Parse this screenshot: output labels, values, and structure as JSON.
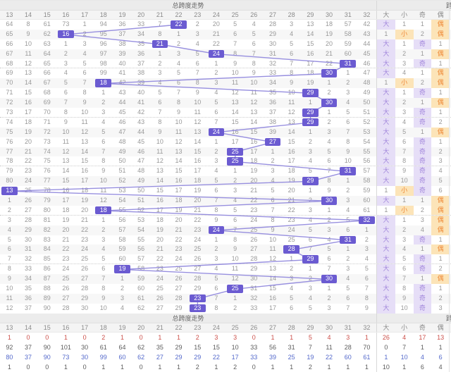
{
  "top_title": "总跨度走势",
  "bottom_title": "总跨度走势",
  "next_section_partial": "跨",
  "columns": [
    "13",
    "14",
    "15",
    "16",
    "17",
    "18",
    "19",
    "20",
    "21",
    "22",
    "23",
    "24",
    "25",
    "26",
    "27",
    "28",
    "29",
    "30",
    "31",
    "32"
  ],
  "pattern_headers": [
    "大",
    "小",
    "奇",
    "偶"
  ],
  "colors": {
    "highlight": "#6b5bd1",
    "trend_line": "#8c83db",
    "big_odd_bg": "#e6def7",
    "big_odd_text": "#a186db",
    "small_even_bg": "#fce4b8",
    "small_even_text": "#ee8937",
    "stat_red": "#cc4f49",
    "stat_blue": "#5469cb",
    "stat_dark": "#5c5c5c"
  },
  "rows": [
    {
      "values": [
        64,
        8,
        61,
        73,
        1,
        94,
        36,
        33,
        7,
        22,
        2,
        20,
        5,
        4,
        28,
        3,
        13,
        18,
        57,
        42
      ],
      "win": 22,
      "pattern": [
        "大",
        "1",
        "1",
        "偶"
      ]
    },
    {
      "values": [
        65,
        9,
        62,
        16,
        2,
        95,
        37,
        34,
        8,
        1,
        3,
        21,
        6,
        5,
        29,
        4,
        14,
        19,
        58,
        43
      ],
      "win": 16,
      "pattern": [
        "1",
        "小",
        "2",
        "偶"
      ]
    },
    {
      "values": [
        66,
        10,
        63,
        1,
        3,
        96,
        38,
        35,
        21,
        2,
        4,
        22,
        7,
        6,
        30,
        5,
        15,
        20,
        59,
        44
      ],
      "win": 21,
      "pattern": [
        "大",
        "1",
        "奇",
        "1"
      ]
    },
    {
      "values": [
        67,
        11,
        64,
        2,
        4,
        97,
        39,
        36,
        1,
        3,
        5,
        24,
        8,
        7,
        31,
        6,
        16,
        21,
        60,
        45
      ],
      "win": 24,
      "pattern": [
        "大",
        "2",
        "1",
        "偶"
      ]
    },
    {
      "values": [
        68,
        12,
        65,
        3,
        5,
        98,
        40,
        37,
        2,
        4,
        6,
        1,
        9,
        8,
        32,
        7,
        17,
        22,
        31,
        46
      ],
      "win": 31,
      "pattern": [
        "大",
        "3",
        "奇",
        "1"
      ]
    },
    {
      "values": [
        69,
        13,
        66,
        4,
        6,
        99,
        41,
        38,
        3,
        5,
        7,
        2,
        10,
        9,
        33,
        8,
        18,
        30,
        1,
        47
      ],
      "win": 30,
      "pattern": [
        "大",
        "4",
        "1",
        "偶"
      ]
    },
    {
      "values": [
        70,
        14,
        67,
        5,
        7,
        18,
        42,
        39,
        4,
        6,
        8,
        3,
        11,
        10,
        34,
        9,
        19,
        1,
        2,
        48
      ],
      "win": 18,
      "pattern": [
        "1",
        "小",
        "2",
        "偶"
      ]
    },
    {
      "values": [
        71,
        15,
        68,
        6,
        8,
        1,
        43,
        40,
        5,
        7,
        9,
        4,
        12,
        11,
        35,
        10,
        29,
        2,
        3,
        49
      ],
      "win": 29,
      "pattern": [
        "大",
        "1",
        "奇",
        "1"
      ]
    },
    {
      "values": [
        72,
        16,
        69,
        7,
        9,
        2,
        44,
        41,
        6,
        8,
        10,
        5,
        13,
        12,
        36,
        11,
        1,
        30,
        4,
        50
      ],
      "win": 30,
      "pattern": [
        "大",
        "2",
        "1",
        "偶"
      ]
    },
    {
      "values": [
        73,
        17,
        70,
        8,
        10,
        3,
        45,
        42,
        7,
        9,
        11,
        6,
        14,
        13,
        37,
        12,
        29,
        1,
        5,
        51
      ],
      "win": 29,
      "pattern": [
        "大",
        "3",
        "奇",
        "1"
      ]
    },
    {
      "values": [
        74,
        18,
        71,
        9,
        11,
        4,
        46,
        43,
        8,
        10,
        12,
        7,
        15,
        14,
        38,
        13,
        29,
        2,
        6,
        52
      ],
      "win": 29,
      "pattern": [
        "大",
        "4",
        "奇",
        "2"
      ]
    },
    {
      "values": [
        75,
        19,
        72,
        10,
        12,
        5,
        47,
        44,
        9,
        11,
        13,
        24,
        16,
        15,
        39,
        14,
        1,
        3,
        7,
        53
      ],
      "win": 24,
      "pattern": [
        "大",
        "5",
        "1",
        "偶"
      ]
    },
    {
      "values": [
        76,
        20,
        73,
        11,
        13,
        6,
        48,
        45,
        10,
        12,
        14,
        1,
        17,
        16,
        27,
        15,
        2,
        4,
        8,
        54
      ],
      "win": 27,
      "pattern": [
        "大",
        "6",
        "奇",
        "1"
      ]
    },
    {
      "values": [
        77,
        21,
        74,
        12,
        14,
        7,
        49,
        46,
        11,
        13,
        15,
        2,
        25,
        17,
        1,
        16,
        3,
        5,
        9,
        55
      ],
      "win": 25,
      "pattern": [
        "大",
        "7",
        "奇",
        "2"
      ]
    },
    {
      "values": [
        78,
        22,
        75,
        13,
        15,
        8,
        50,
        47,
        12,
        14,
        16,
        3,
        25,
        18,
        2,
        17,
        4,
        6,
        10,
        56
      ],
      "win": 25,
      "pattern": [
        "大",
        "8",
        "奇",
        "3"
      ]
    },
    {
      "values": [
        79,
        23,
        76,
        14,
        16,
        9,
        51,
        48,
        13,
        15,
        17,
        4,
        1,
        19,
        3,
        18,
        5,
        7,
        31,
        57
      ],
      "win": 31,
      "pattern": [
        "大",
        "9",
        "奇",
        "4"
      ]
    },
    {
      "values": [
        80,
        24,
        77,
        15,
        17,
        10,
        52,
        49,
        14,
        16,
        18,
        5,
        2,
        20,
        4,
        19,
        29,
        8,
        1,
        58
      ],
      "win": 29,
      "pattern": [
        "大",
        "10",
        "奇",
        "5"
      ]
    },
    {
      "values": [
        13,
        25,
        78,
        16,
        18,
        11,
        53,
        50,
        15,
        17,
        19,
        6,
        3,
        21,
        5,
        20,
        1,
        9,
        2,
        59
      ],
      "win": 13,
      "pattern": [
        "1",
        "小",
        "奇",
        "6"
      ]
    },
    {
      "values": [
        1,
        26,
        79,
        17,
        19,
        12,
        54,
        51,
        16,
        18,
        20,
        7,
        4,
        22,
        6,
        21,
        2,
        30,
        3,
        60
      ],
      "win": 30,
      "pattern": [
        "大",
        "1",
        "1",
        "偶"
      ]
    },
    {
      "values": [
        2,
        27,
        80,
        18,
        20,
        18,
        55,
        52,
        17,
        19,
        21,
        8,
        5,
        23,
        7,
        22,
        3,
        1,
        4,
        61
      ],
      "win": 18,
      "pattern": [
        "1",
        "小",
        "2",
        "偶"
      ]
    },
    {
      "values": [
        3,
        28,
        81,
        19,
        21,
        1,
        56,
        53,
        18,
        20,
        22,
        9,
        6,
        24,
        8,
        23,
        4,
        2,
        5,
        32
      ],
      "win": 32,
      "pattern": [
        "大",
        "1",
        "3",
        "偶"
      ]
    },
    {
      "values": [
        4,
        29,
        82,
        20,
        22,
        2,
        57,
        54,
        19,
        21,
        23,
        24,
        7,
        25,
        9,
        24,
        5,
        3,
        6,
        1
      ],
      "win": 24,
      "pattern": [
        "大",
        "2",
        "4",
        "偶"
      ]
    },
    {
      "values": [
        5,
        30,
        83,
        21,
        23,
        3,
        58,
        55,
        20,
        22,
        24,
        1,
        8,
        26,
        10,
        25,
        6,
        4,
        31,
        2
      ],
      "win": 31,
      "pattern": [
        "大",
        "3",
        "奇",
        "1"
      ]
    },
    {
      "values": [
        6,
        31,
        84,
        22,
        24,
        4,
        59,
        56,
        21,
        23,
        25,
        2,
        9,
        27,
        11,
        28,
        7,
        5,
        1,
        3
      ],
      "win": 28,
      "pattern": [
        "大",
        "4",
        "1",
        "偶"
      ]
    },
    {
      "values": [
        7,
        32,
        85,
        23,
        25,
        5,
        60,
        57,
        22,
        24,
        26,
        3,
        10,
        28,
        12,
        1,
        29,
        6,
        2,
        4
      ],
      "win": 29,
      "pattern": [
        "大",
        "5",
        "奇",
        "1"
      ]
    },
    {
      "values": [
        8,
        33,
        86,
        24,
        26,
        6,
        19,
        58,
        23,
        25,
        27,
        4,
        11,
        29,
        13,
        2,
        1,
        7,
        3,
        5
      ],
      "win": 19,
      "pattern": [
        "大",
        "6",
        "奇",
        "2"
      ]
    },
    {
      "values": [
        9,
        34,
        87,
        25,
        27,
        7,
        1,
        59,
        24,
        26,
        28,
        5,
        12,
        30,
        14,
        3,
        2,
        30,
        4,
        6
      ],
      "win": 30,
      "pattern": [
        "大",
        "7",
        "1",
        "偶"
      ]
    },
    {
      "values": [
        10,
        35,
        88,
        26,
        28,
        8,
        2,
        60,
        25,
        27,
        29,
        6,
        25,
        31,
        15,
        4,
        3,
        1,
        5,
        7
      ],
      "win": 25,
      "pattern": [
        "大",
        "8",
        "奇",
        "1"
      ]
    },
    {
      "values": [
        11,
        36,
        89,
        27,
        29,
        9,
        3,
        61,
        26,
        28,
        23,
        7,
        1,
        32,
        16,
        5,
        4,
        2,
        6,
        8
      ],
      "win": 23,
      "pattern": [
        "大",
        "9",
        "奇",
        "2"
      ]
    },
    {
      "values": [
        12,
        37,
        90,
        28,
        30,
        10,
        4,
        62,
        27,
        29,
        23,
        8,
        2,
        33,
        17,
        6,
        5,
        3,
        7,
        9
      ],
      "win": 23,
      "pattern": [
        "大",
        "10",
        "奇",
        "3"
      ]
    }
  ],
  "stats": [
    {
      "color": "red",
      "values": [
        1,
        0,
        0,
        1,
        0,
        2,
        1,
        0,
        1,
        1,
        2,
        3,
        3,
        0,
        1,
        1,
        5,
        4,
        3,
        1,
        26,
        4,
        17,
        13
      ]
    },
    {
      "color": "dark",
      "values": [
        92,
        37,
        90,
        101,
        30,
        61,
        64,
        62,
        35,
        29,
        15,
        15,
        10,
        33,
        56,
        31,
        7,
        11,
        28,
        70,
        0,
        7,
        1,
        1
      ]
    },
    {
      "color": "blue",
      "values": [
        80,
        37,
        90,
        73,
        30,
        99,
        60,
        62,
        27,
        29,
        29,
        22,
        17,
        33,
        39,
        25,
        19,
        22,
        60,
        61,
        1,
        10,
        4,
        6
      ]
    },
    {
      "color": "dark",
      "values": [
        1,
        0,
        0,
        1,
        0,
        1,
        1,
        0,
        1,
        1,
        2,
        1,
        2,
        0,
        1,
        1,
        2,
        1,
        1,
        1,
        10,
        1,
        6,
        4
      ]
    }
  ],
  "chart_data": {
    "type": "line",
    "title": "总跨度走势",
    "xlabel": "",
    "ylabel": "总跨度",
    "ylim": [
      13,
      32
    ],
    "x": [
      1,
      2,
      3,
      4,
      5,
      6,
      7,
      8,
      9,
      10,
      11,
      12,
      13,
      14,
      15,
      16,
      17,
      18,
      19,
      20,
      21,
      22,
      23,
      24,
      25,
      26,
      27,
      28,
      29,
      30
    ],
    "series": [
      {
        "name": "总跨度",
        "values": [
          22,
          16,
          21,
          24,
          31,
          30,
          18,
          29,
          30,
          29,
          29,
          24,
          27,
          25,
          25,
          31,
          29,
          13,
          30,
          18,
          32,
          24,
          31,
          28,
          29,
          19,
          30,
          25,
          23,
          23
        ]
      },
      {
        "name": "大小",
        "values": [
          "大",
          "小",
          "大",
          "大",
          "大",
          "大",
          "小",
          "大",
          "大",
          "大",
          "大",
          "大",
          "大",
          "大",
          "大",
          "大",
          "大",
          "小",
          "大",
          "小",
          "大",
          "大",
          "大",
          "大",
          "大",
          "大",
          "大",
          "大",
          "大",
          "大"
        ]
      },
      {
        "name": "奇偶",
        "values": [
          "偶",
          "偶",
          "奇",
          "偶",
          "奇",
          "偶",
          "偶",
          "奇",
          "偶",
          "奇",
          "奇",
          "偶",
          "奇",
          "奇",
          "奇",
          "奇",
          "奇",
          "奇",
          "偶",
          "偶",
          "偶",
          "偶",
          "奇",
          "偶",
          "奇",
          "奇",
          "偶",
          "奇",
          "奇",
          "奇"
        ]
      }
    ],
    "stats_columns": [
      "13",
      "14",
      "15",
      "16",
      "17",
      "18",
      "19",
      "20",
      "21",
      "22",
      "23",
      "24",
      "25",
      "26",
      "27",
      "28",
      "29",
      "30",
      "31",
      "32",
      "大",
      "小",
      "奇",
      "偶"
    ],
    "stats_rows": [
      [
        1,
        0,
        0,
        1,
        0,
        2,
        1,
        0,
        1,
        1,
        2,
        3,
        3,
        0,
        1,
        1,
        5,
        4,
        3,
        1,
        26,
        4,
        17,
        13
      ],
      [
        92,
        37,
        90,
        101,
        30,
        61,
        64,
        62,
        35,
        29,
        15,
        15,
        10,
        33,
        56,
        31,
        7,
        11,
        28,
        70,
        0,
        7,
        1,
        1
      ],
      [
        80,
        37,
        90,
        73,
        30,
        99,
        60,
        62,
        27,
        29,
        29,
        22,
        17,
        33,
        39,
        25,
        19,
        22,
        60,
        61,
        1,
        10,
        4,
        6
      ],
      [
        1,
        0,
        0,
        1,
        0,
        1,
        1,
        0,
        1,
        1,
        2,
        1,
        2,
        0,
        1,
        1,
        2,
        1,
        1,
        1,
        10,
        1,
        6,
        4
      ]
    ],
    "legend_position": "none",
    "grid": false
  }
}
